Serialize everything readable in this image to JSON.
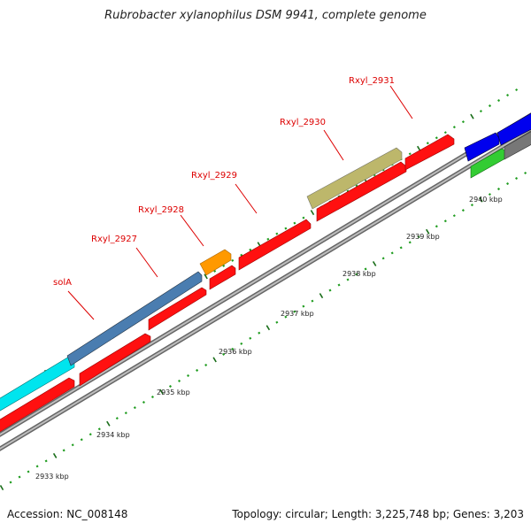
{
  "title": "Rubrobacter xylanophilus DSM 9941, complete genome",
  "footer": {
    "accession": "Accession: NC_008148",
    "summary": "Topology: circular; Length: 3,225,748 bp; Genes: 3,203"
  },
  "colors": {
    "backbone": "#8c8c8c",
    "tick_major": "#1a6e1a",
    "tick_minor": "#1f9c1f",
    "label": "#dd0000",
    "cds_red": "#ff0000",
    "cyan": "#00e5ee",
    "steelblue": "#4a7db0",
    "orange": "#ff9900",
    "khaki": "#bdb76b",
    "blue": "#0000ee",
    "green": "#33cc33",
    "gray": "#777777"
  },
  "kbp_labels": [
    "2933 kbp",
    "2934 kbp",
    "2935 kbp",
    "2936 kbp",
    "2937 kbp",
    "2938 kbp",
    "2939 kbp",
    "2940 kbp"
  ],
  "gene_labels": [
    {
      "id": "solA",
      "text": "solA"
    },
    {
      "id": "rxyl-2927",
      "text": "Rxyl_2927"
    },
    {
      "id": "rxyl-2928",
      "text": "Rxyl_2928"
    },
    {
      "id": "rxyl-2929",
      "text": "Rxyl_2929"
    },
    {
      "id": "rxyl-2930",
      "text": "Rxyl_2930"
    },
    {
      "id": "rxyl-2931",
      "text": "Rxyl_2931"
    }
  ]
}
